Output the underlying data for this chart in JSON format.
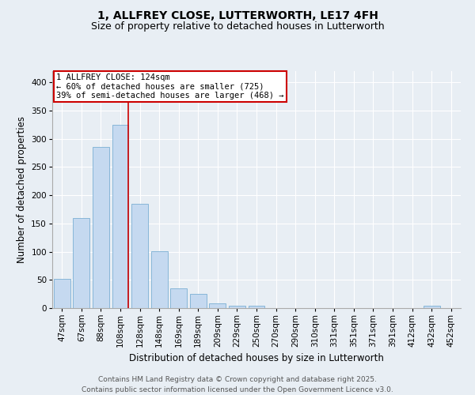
{
  "title": "1, ALLFREY CLOSE, LUTTERWORTH, LE17 4FH",
  "subtitle": "Size of property relative to detached houses in Lutterworth",
  "xlabel": "Distribution of detached houses by size in Lutterworth",
  "ylabel": "Number of detached properties",
  "categories": [
    "47sqm",
    "67sqm",
    "88sqm",
    "108sqm",
    "128sqm",
    "148sqm",
    "169sqm",
    "189sqm",
    "209sqm",
    "229sqm",
    "250sqm",
    "270sqm",
    "290sqm",
    "310sqm",
    "331sqm",
    "351sqm",
    "371sqm",
    "391sqm",
    "412sqm",
    "432sqm",
    "452sqm"
  ],
  "values": [
    52,
    160,
    285,
    325,
    185,
    101,
    35,
    25,
    8,
    4,
    4,
    0,
    0,
    0,
    0,
    0,
    0,
    0,
    0,
    4,
    0
  ],
  "bar_color": "#c5d9f0",
  "bar_edge_color": "#7bafd4",
  "red_line_color": "#cc0000",
  "red_line_index": 3.42,
  "annotation_text": "1 ALLFREY CLOSE: 124sqm\n← 60% of detached houses are smaller (725)\n39% of semi-detached houses are larger (468) →",
  "annotation_box_facecolor": "#ffffff",
  "annotation_box_edgecolor": "#cc0000",
  "ylim": [
    0,
    420
  ],
  "yticks": [
    0,
    50,
    100,
    150,
    200,
    250,
    300,
    350,
    400
  ],
  "background_color": "#e8eef4",
  "grid_color": "#ffffff",
  "title_fontsize": 10,
  "subtitle_fontsize": 9,
  "axis_label_fontsize": 8.5,
  "tick_fontsize": 7.5,
  "annotation_fontsize": 7.5,
  "footnote_fontsize": 6.5,
  "footnote": "Contains HM Land Registry data © Crown copyright and database right 2025.\nContains public sector information licensed under the Open Government Licence v3.0."
}
